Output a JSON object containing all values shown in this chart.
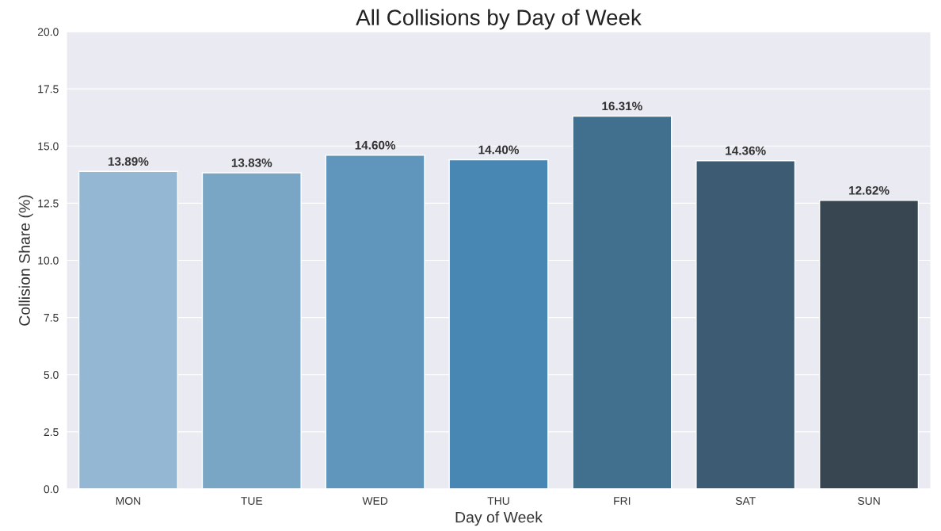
{
  "chart_data": {
    "type": "bar",
    "title": "All Collisions by Day of Week",
    "xlabel": "Day of Week",
    "ylabel": "Collision Share (%)",
    "categories": [
      "MON",
      "TUE",
      "WED",
      "THU",
      "FRI",
      "SAT",
      "SUN"
    ],
    "values": [
      13.89,
      13.83,
      14.6,
      14.4,
      16.31,
      14.36,
      12.62
    ],
    "value_labels": [
      "13.89%",
      "13.83%",
      "14.60%",
      "14.40%",
      "16.31%",
      "14.36%",
      "12.62%"
    ],
    "colors": [
      "#94b8d3",
      "#7aa6c6",
      "#6095bc",
      "#4886b3",
      "#41708f",
      "#3d5b72",
      "#374651"
    ],
    "ylim": [
      0,
      20
    ],
    "yticks": [
      {
        "value": 0,
        "label": "0.0"
      },
      {
        "value": 2.5,
        "label": "2.5"
      },
      {
        "value": 5,
        "label": "5.0"
      },
      {
        "value": 7.5,
        "label": "7.5"
      },
      {
        "value": 10,
        "label": "10.0"
      },
      {
        "value": 12.5,
        "label": "12.5"
      },
      {
        "value": 15,
        "label": "15.0"
      },
      {
        "value": 17.5,
        "label": "17.5"
      },
      {
        "value": 20,
        "label": "20.0"
      }
    ],
    "grid": "y",
    "legend": false
  }
}
